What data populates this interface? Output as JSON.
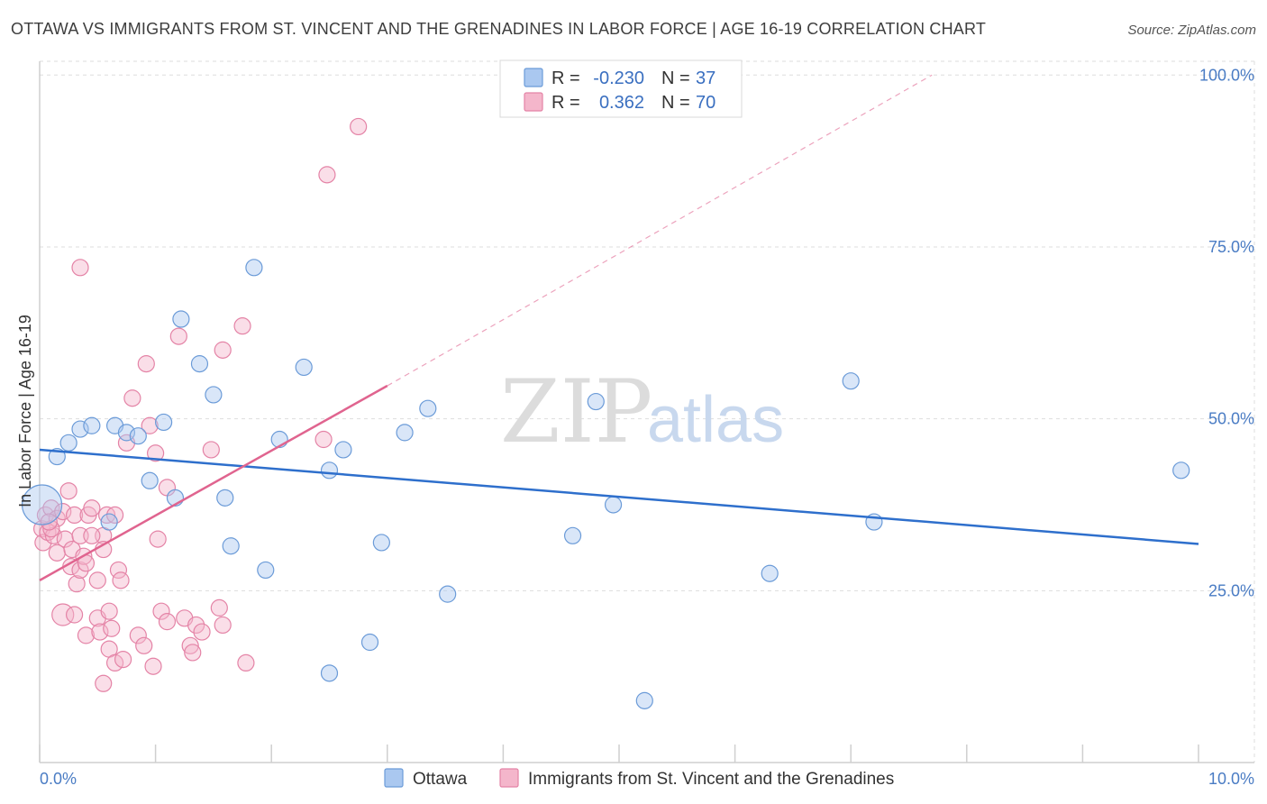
{
  "title": "OTTAWA VS IMMIGRANTS FROM ST. VINCENT AND THE GRENADINES IN LABOR FORCE | AGE 16-19 CORRELATION CHART",
  "source": "Source: ZipAtlas.com",
  "watermark": {
    "zip": "ZIP",
    "atlas": "atlas"
  },
  "colors": {
    "blue_fill": "#aac8f0",
    "blue_stroke": "#6b9bd8",
    "blue_line": "#2e6fcc",
    "pink_fill": "#f4b6cb",
    "pink_stroke": "#e483a6",
    "pink_line": "#e0648f",
    "grid": "#dddddd",
    "axis_label": "#4a7cc4"
  },
  "legend": {
    "r_label": "R = ",
    "n_label": "N = ",
    "rows": [
      {
        "r": "-0.230",
        "n": "37"
      },
      {
        "r": "0.362",
        "n": "70"
      }
    ]
  },
  "chart_data": {
    "type": "scatter",
    "xlabel": "",
    "ylabel": "In Labor Force | Age 16-19",
    "xlim": [
      0,
      10
    ],
    "ylim": [
      0,
      102
    ],
    "x_tick_labels": {
      "left": "0.0%",
      "right": "10.0%"
    },
    "y_ticks": [
      {
        "value": 100,
        "label": "100.0%"
      },
      {
        "value": 75,
        "label": "75.0%"
      },
      {
        "value": 50,
        "label": "50.0%"
      },
      {
        "value": 25,
        "label": "25.0%"
      }
    ],
    "series": [
      {
        "name": "Ottawa",
        "trend": {
          "x0": 0,
          "y0": 45.5,
          "x1": 10,
          "y1": 31.8,
          "dashed_to": null
        },
        "points": [
          [
            0.02,
            37.5,
            22
          ],
          [
            0.15,
            44.5,
            9
          ],
          [
            0.25,
            46.5,
            9
          ],
          [
            0.35,
            48.5,
            9
          ],
          [
            0.45,
            49.0,
            9
          ],
          [
            0.6,
            35.0,
            9
          ],
          [
            0.65,
            49.0,
            9
          ],
          [
            0.75,
            48.0,
            9
          ],
          [
            0.85,
            47.5,
            9
          ],
          [
            0.95,
            41.0,
            9
          ],
          [
            1.07,
            49.5,
            9
          ],
          [
            1.17,
            38.5,
            9
          ],
          [
            1.22,
            64.5,
            9
          ],
          [
            1.38,
            58.0,
            9
          ],
          [
            1.5,
            53.5,
            9
          ],
          [
            1.6,
            38.5,
            9
          ],
          [
            1.65,
            31.5,
            9
          ],
          [
            1.85,
            72.0,
            9
          ],
          [
            1.95,
            28.0,
            9
          ],
          [
            2.07,
            47.0,
            9
          ],
          [
            2.28,
            57.5,
            9
          ],
          [
            2.5,
            42.5,
            9
          ],
          [
            2.62,
            45.5,
            9
          ],
          [
            2.5,
            13.0,
            9
          ],
          [
            2.85,
            17.5,
            9
          ],
          [
            2.95,
            32.0,
            9
          ],
          [
            3.15,
            48.0,
            9
          ],
          [
            3.35,
            51.5,
            9
          ],
          [
            3.52,
            24.5,
            9
          ],
          [
            4.6,
            33.0,
            9
          ],
          [
            4.8,
            52.5,
            9
          ],
          [
            4.95,
            37.5,
            9
          ],
          [
            5.22,
            9.0,
            9
          ],
          [
            6.3,
            27.5,
            9
          ],
          [
            7.0,
            55.5,
            9
          ],
          [
            7.2,
            35.0,
            9
          ],
          [
            9.85,
            42.5,
            9
          ]
        ]
      },
      {
        "name": "Immigrants from St. Vincent and the Grenadines",
        "trend": {
          "x0": 0,
          "y0": 26.5,
          "x1": 3.0,
          "y1": 54.8,
          "dashed_to": [
            7.7,
            100
          ]
        },
        "points": [
          [
            0.02,
            34.0,
            9
          ],
          [
            0.03,
            32.0,
            9
          ],
          [
            0.05,
            36.0,
            9
          ],
          [
            0.07,
            33.5,
            9
          ],
          [
            0.1,
            37.0,
            9
          ],
          [
            0.12,
            33.0,
            9
          ],
          [
            0.15,
            30.5,
            9
          ],
          [
            0.15,
            35.5,
            9
          ],
          [
            0.2,
            21.5,
            12
          ],
          [
            0.2,
            36.5,
            9
          ],
          [
            0.22,
            32.5,
            9
          ],
          [
            0.25,
            39.5,
            9
          ],
          [
            0.27,
            28.5,
            9
          ],
          [
            0.28,
            31.0,
            9
          ],
          [
            0.3,
            36.0,
            9
          ],
          [
            0.3,
            21.5,
            9
          ],
          [
            0.32,
            26.0,
            9
          ],
          [
            0.35,
            33.0,
            9
          ],
          [
            0.35,
            28.0,
            9
          ],
          [
            0.38,
            30.0,
            9
          ],
          [
            0.4,
            29.0,
            9
          ],
          [
            0.42,
            36.0,
            9
          ],
          [
            0.35,
            72.0,
            9
          ],
          [
            0.45,
            37.0,
            9
          ],
          [
            0.4,
            18.5,
            9
          ],
          [
            0.5,
            26.5,
            9
          ],
          [
            0.55,
            33.0,
            9
          ],
          [
            0.5,
            21.0,
            9
          ],
          [
            0.52,
            19.0,
            9
          ],
          [
            0.55,
            31.0,
            9
          ],
          [
            0.58,
            36.0,
            9
          ],
          [
            0.6,
            22.0,
            9
          ],
          [
            0.62,
            19.5,
            9
          ],
          [
            0.6,
            16.5,
            9
          ],
          [
            0.65,
            14.5,
            9
          ],
          [
            0.68,
            28.0,
            9
          ],
          [
            0.7,
            26.5,
            9
          ],
          [
            0.72,
            15.0,
            9
          ],
          [
            0.55,
            11.5,
            9
          ],
          [
            0.75,
            46.5,
            9
          ],
          [
            0.8,
            53.0,
            9
          ],
          [
            0.85,
            18.5,
            9
          ],
          [
            0.9,
            17.0,
            9
          ],
          [
            0.92,
            58.0,
            9
          ],
          [
            0.95,
            49.0,
            9
          ],
          [
            0.98,
            14.0,
            9
          ],
          [
            1.0,
            45.0,
            9
          ],
          [
            1.02,
            32.5,
            9
          ],
          [
            1.05,
            22.0,
            9
          ],
          [
            1.1,
            20.5,
            9
          ],
          [
            1.1,
            40.0,
            9
          ],
          [
            1.2,
            62.0,
            9
          ],
          [
            1.25,
            21.0,
            9
          ],
          [
            1.3,
            17.0,
            9
          ],
          [
            1.32,
            16.0,
            9
          ],
          [
            1.35,
            20.0,
            9
          ],
          [
            1.4,
            19.0,
            9
          ],
          [
            1.48,
            45.5,
            9
          ],
          [
            1.55,
            22.5,
            9
          ],
          [
            1.58,
            20.0,
            9
          ],
          [
            1.58,
            60.0,
            9
          ],
          [
            1.75,
            63.5,
            9
          ],
          [
            1.78,
            14.5,
            9
          ],
          [
            2.48,
            85.5,
            9
          ],
          [
            2.45,
            47.0,
            9
          ],
          [
            2.75,
            92.5,
            9
          ],
          [
            0.1,
            34.0,
            9
          ],
          [
            0.08,
            35.0,
            9
          ],
          [
            0.45,
            33.0,
            9
          ],
          [
            0.65,
            36.0,
            9
          ]
        ]
      }
    ]
  }
}
